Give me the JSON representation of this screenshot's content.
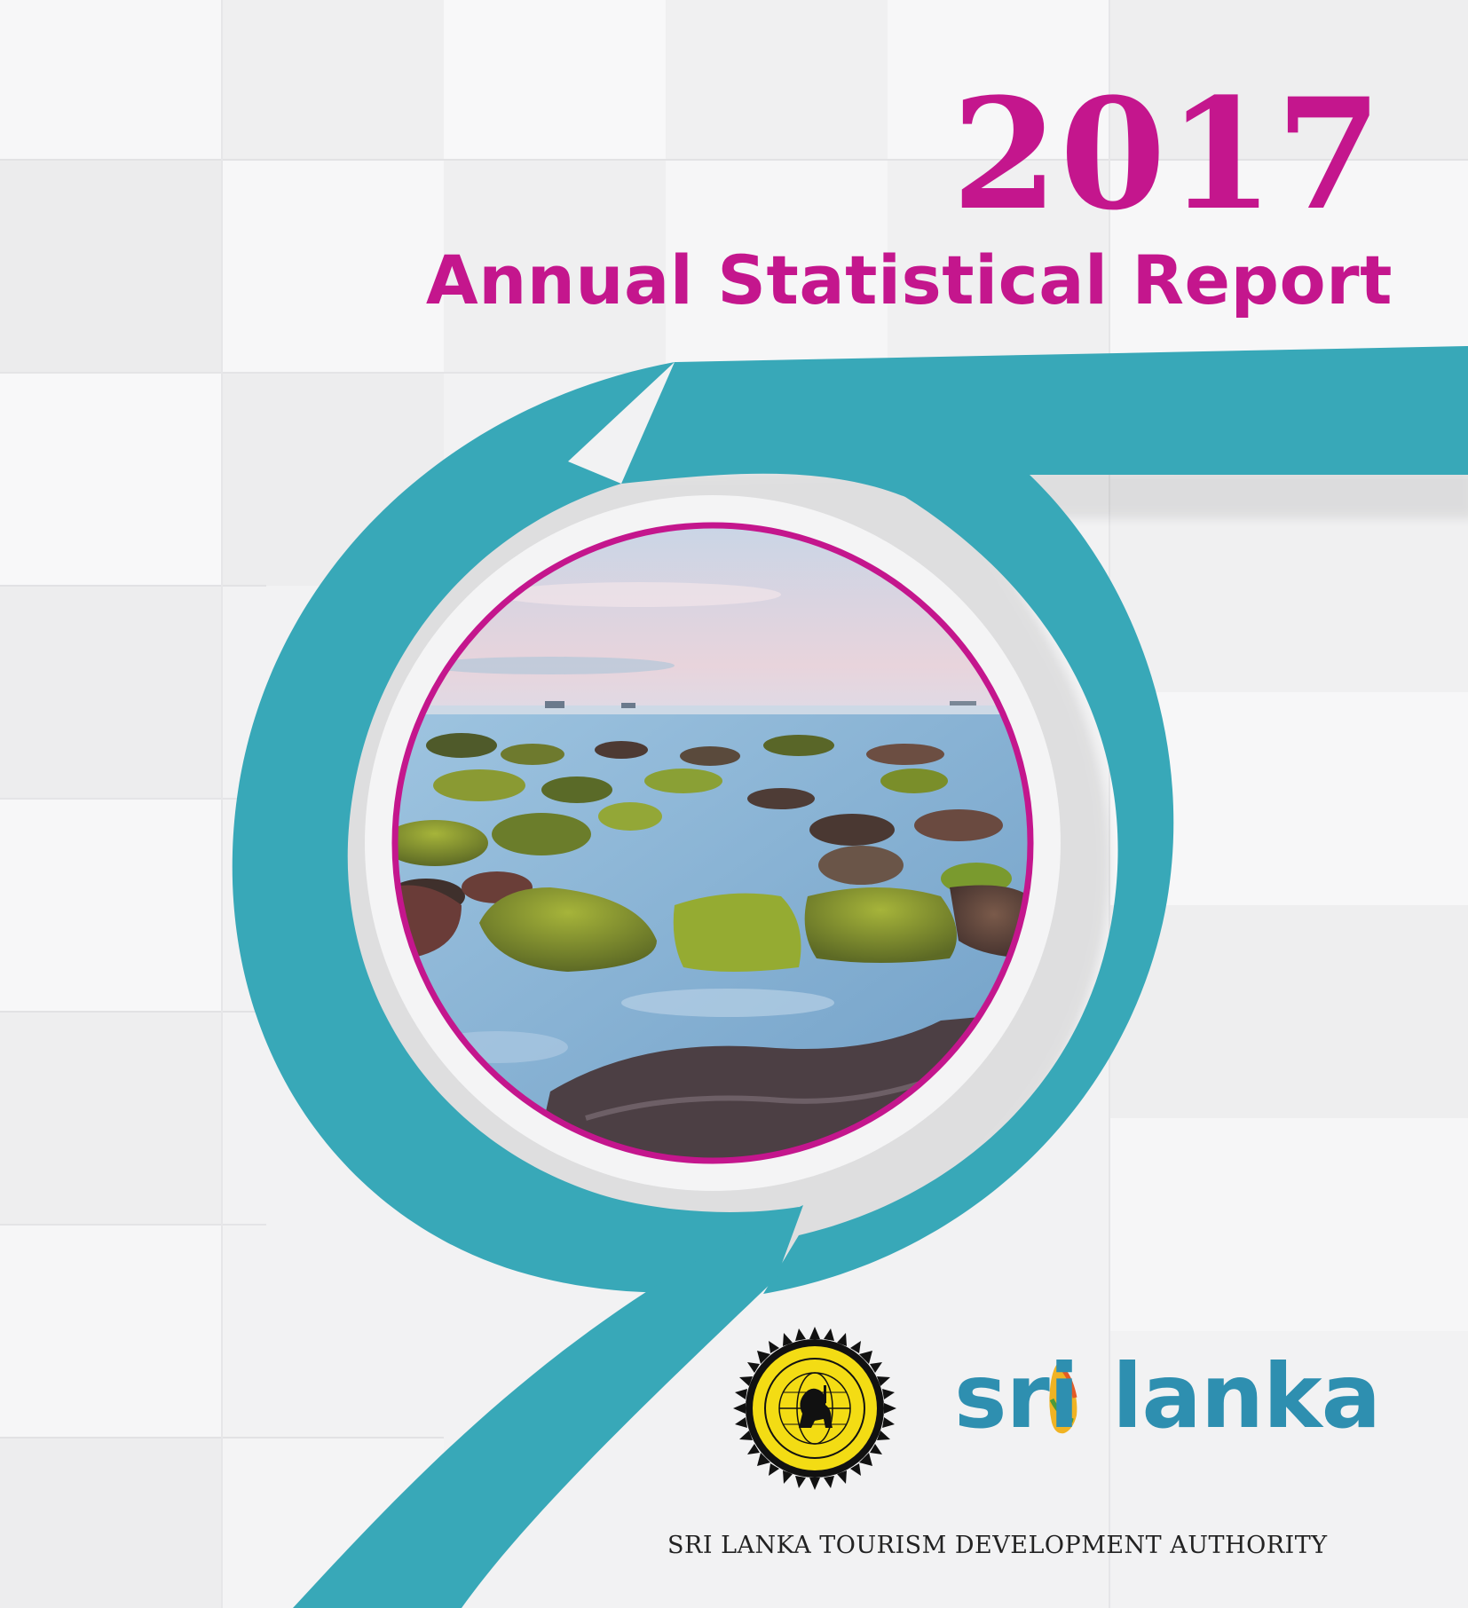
{
  "cover": {
    "year": "2017",
    "title": "Annual Statistical Report",
    "brand": {
      "sri": "sri",
      "lanka": "lanka"
    },
    "authority": "SRI LANKA TOURISM DEVELOPMENT AUTHORITY"
  },
  "colors": {
    "accent_magenta": "#c4168d",
    "accent_teal": "#38a8b8",
    "background": "#f2f2f3"
  },
  "icons": [
    "sltda-emblem-icon",
    "sri-lanka-map-icon"
  ]
}
